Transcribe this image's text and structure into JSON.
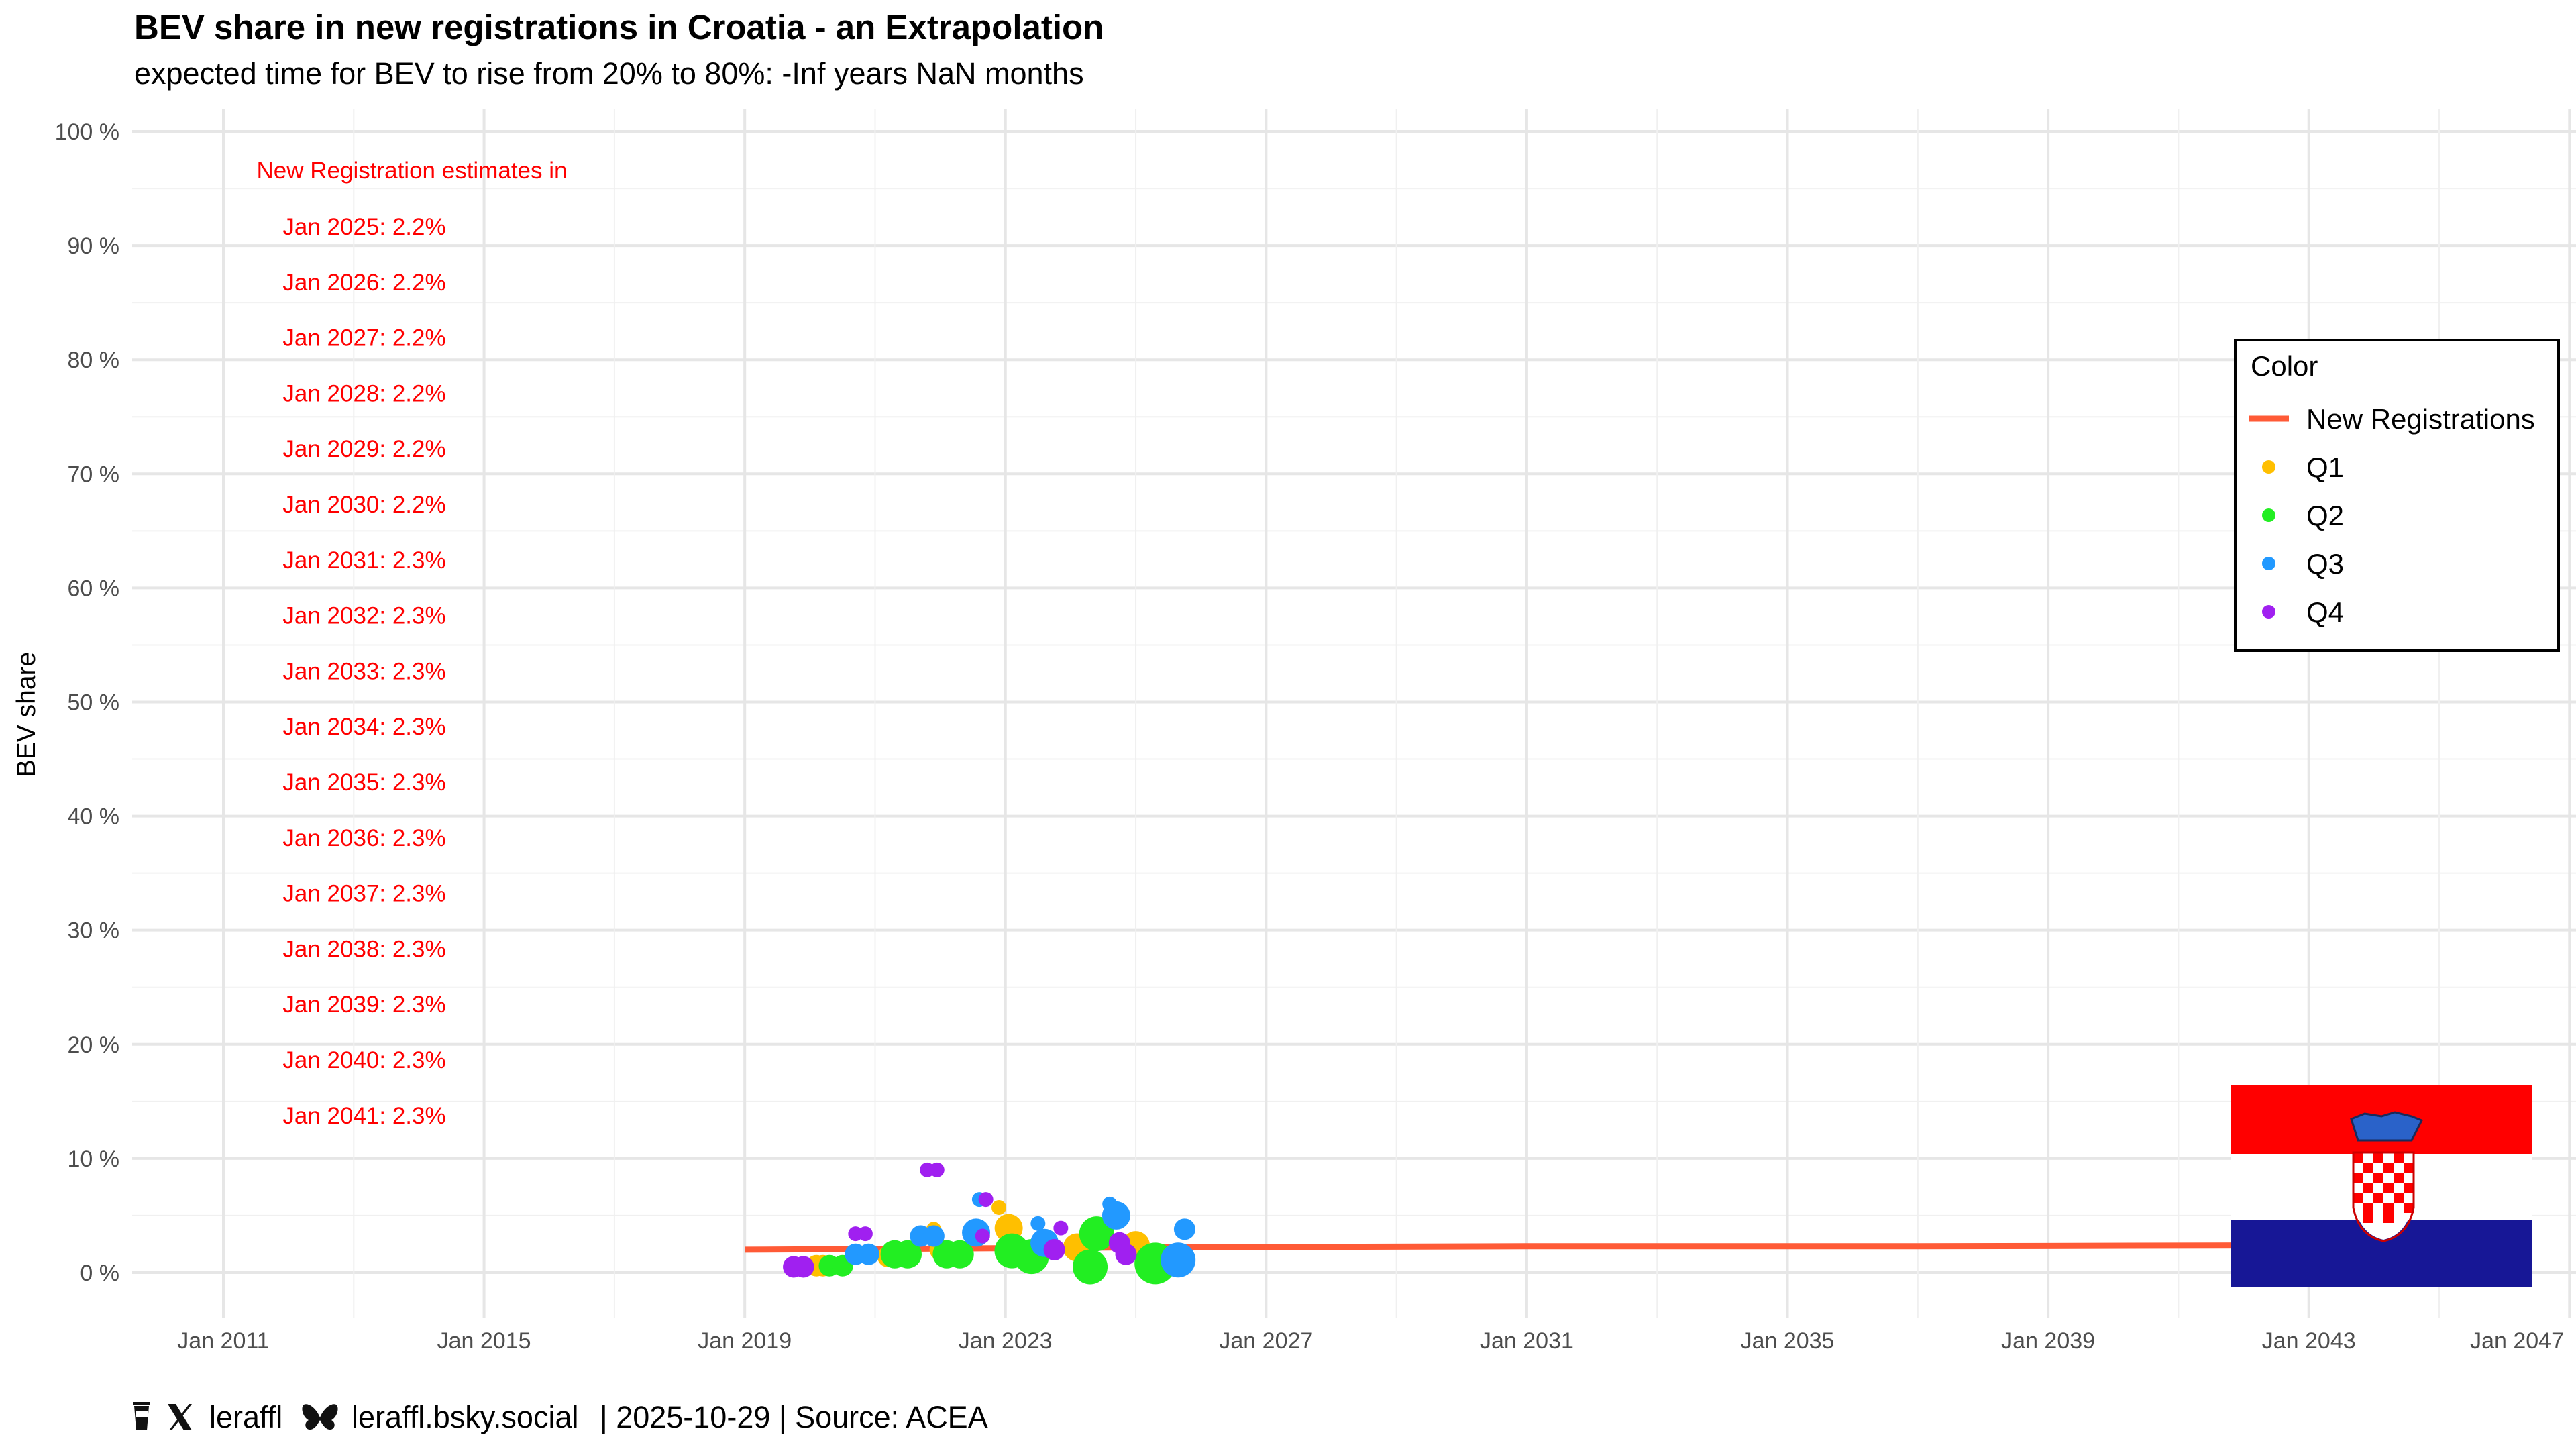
{
  "title": "BEV share in new registrations in Croatia - an Extrapolation",
  "subtitle": "expected time for BEV to rise from 20% to 80%: -Inf years NaN months",
  "caption": {
    "handle_x": "leraffl",
    "handle_bsky": "leraffl.bsky.social",
    "date_source": "| 2025-10-29 | Source: ACEA"
  },
  "legend": {
    "title": "Color",
    "items": [
      {
        "label": "New Registrations",
        "kind": "line",
        "color": "#ff5a36"
      },
      {
        "label": "Q1",
        "kind": "point",
        "color": "#ffbf00"
      },
      {
        "label": "Q2",
        "kind": "point",
        "color": "#22ee22"
      },
      {
        "label": "Q3",
        "kind": "point",
        "color": "#2299ff"
      },
      {
        "label": "Q4",
        "kind": "point",
        "color": "#a020f0"
      }
    ]
  },
  "estimates": {
    "header": "New Registration estimates in",
    "lines": [
      "Jan 2025: 2.2%",
      "Jan 2026: 2.2%",
      "Jan 2027: 2.2%",
      "Jan 2028: 2.2%",
      "Jan 2029: 2.2%",
      "Jan 2030: 2.2%",
      "Jan 2031: 2.3%",
      "Jan 2032: 2.3%",
      "Jan 2033: 2.3%",
      "Jan 2034: 2.3%",
      "Jan 2035: 2.3%",
      "Jan 2036: 2.3%",
      "Jan 2037: 2.3%",
      "Jan 2038: 2.3%",
      "Jan 2039: 2.3%",
      "Jan 2040: 2.3%",
      "Jan 2041: 2.3%"
    ]
  },
  "chart_data": {
    "type": "scatter",
    "xlabel": "",
    "ylabel": "BEV share",
    "xlim": [
      2009.6,
      2047.1
    ],
    "ylim": [
      -4,
      102
    ],
    "x_ticks": [
      2011,
      2015,
      2019,
      2023,
      2027,
      2031,
      2035,
      2039,
      2043,
      2047
    ],
    "x_tick_labels": [
      "Jan 2011",
      "Jan 2015",
      "Jan 2019",
      "Jan 2023",
      "Jan 2027",
      "Jan 2031",
      "Jan 2035",
      "Jan 2039",
      "Jan 2043",
      "Jan 2047"
    ],
    "y_ticks": [
      0,
      10,
      20,
      30,
      40,
      50,
      60,
      70,
      80,
      90,
      100
    ],
    "y_tick_labels": [
      "0 %",
      "10 %",
      "20 %",
      "30 %",
      "40 %",
      "50 %",
      "60 %",
      "70 %",
      "80 %",
      "90 %",
      "100 %"
    ],
    "grid": true,
    "legend_position": "right",
    "trend": {
      "name": "New Registrations",
      "x": [
        2019.0,
        2025.0,
        2031.0,
        2037.0,
        2044.0
      ],
      "y": [
        2.0,
        2.2,
        2.3,
        2.3,
        2.4
      ]
    },
    "series": [
      {
        "name": "Q1",
        "color": "#ffbf00",
        "points": [
          {
            "x": 2020.1,
            "y": 0.6,
            "size": 2
          },
          {
            "x": 2020.2,
            "y": 0.6,
            "size": 2
          },
          {
            "x": 2021.2,
            "y": 1.4,
            "size": 2
          },
          {
            "x": 2021.9,
            "y": 3.8,
            "size": 1
          },
          {
            "x": 2022.0,
            "y": 2.0,
            "size": 2
          },
          {
            "x": 2022.9,
            "y": 5.7,
            "size": 1
          },
          {
            "x": 2023.05,
            "y": 3.9,
            "size": 3
          },
          {
            "x": 2024.1,
            "y": 2.2,
            "size": 3
          },
          {
            "x": 2025.0,
            "y": 2.4,
            "size": 3
          }
        ]
      },
      {
        "name": "Q2",
        "color": "#22ee22",
        "points": [
          {
            "x": 2020.3,
            "y": 0.6,
            "size": 2
          },
          {
            "x": 2020.5,
            "y": 0.6,
            "size": 2
          },
          {
            "x": 2021.3,
            "y": 1.6,
            "size": 3
          },
          {
            "x": 2021.5,
            "y": 1.6,
            "size": 3
          },
          {
            "x": 2022.1,
            "y": 1.6,
            "size": 3
          },
          {
            "x": 2022.3,
            "y": 1.6,
            "size": 3
          },
          {
            "x": 2023.1,
            "y": 1.9,
            "size": 4
          },
          {
            "x": 2023.4,
            "y": 1.4,
            "size": 4
          },
          {
            "x": 2024.3,
            "y": 0.5,
            "size": 4
          },
          {
            "x": 2024.4,
            "y": 3.4,
            "size": 4
          },
          {
            "x": 2025.3,
            "y": 0.8,
            "size": 5
          }
        ]
      },
      {
        "name": "Q3",
        "color": "#2299ff",
        "points": [
          {
            "x": 2020.7,
            "y": 1.6,
            "size": 2
          },
          {
            "x": 2020.9,
            "y": 1.6,
            "size": 2
          },
          {
            "x": 2021.7,
            "y": 3.2,
            "size": 2
          },
          {
            "x": 2021.9,
            "y": 3.2,
            "size": 2
          },
          {
            "x": 2022.6,
            "y": 6.4,
            "size": 1
          },
          {
            "x": 2022.55,
            "y": 3.5,
            "size": 3
          },
          {
            "x": 2023.5,
            "y": 4.3,
            "size": 1
          },
          {
            "x": 2023.6,
            "y": 2.6,
            "size": 3
          },
          {
            "x": 2024.6,
            "y": 6.0,
            "size": 1
          },
          {
            "x": 2024.7,
            "y": 5.0,
            "size": 3
          },
          {
            "x": 2025.65,
            "y": 1.1,
            "size": 4
          },
          {
            "x": 2025.75,
            "y": 3.8,
            "size": 2
          }
        ]
      },
      {
        "name": "Q4",
        "color": "#a020f0",
        "points": [
          {
            "x": 2019.75,
            "y": 0.5,
            "size": 2
          },
          {
            "x": 2019.9,
            "y": 0.5,
            "size": 2
          },
          {
            "x": 2020.7,
            "y": 3.4,
            "size": 1
          },
          {
            "x": 2020.85,
            "y": 3.4,
            "size": 1
          },
          {
            "x": 2021.8,
            "y": 9.0,
            "size": 1
          },
          {
            "x": 2021.95,
            "y": 9.0,
            "size": 1
          },
          {
            "x": 2022.7,
            "y": 6.4,
            "size": 1
          },
          {
            "x": 2022.65,
            "y": 3.2,
            "size": 1
          },
          {
            "x": 2023.75,
            "y": 2.0,
            "size": 2
          },
          {
            "x": 2023.85,
            "y": 3.9,
            "size": 1
          },
          {
            "x": 2024.75,
            "y": 2.6,
            "size": 2
          },
          {
            "x": 2024.85,
            "y": 1.6,
            "size": 2
          }
        ]
      }
    ]
  }
}
